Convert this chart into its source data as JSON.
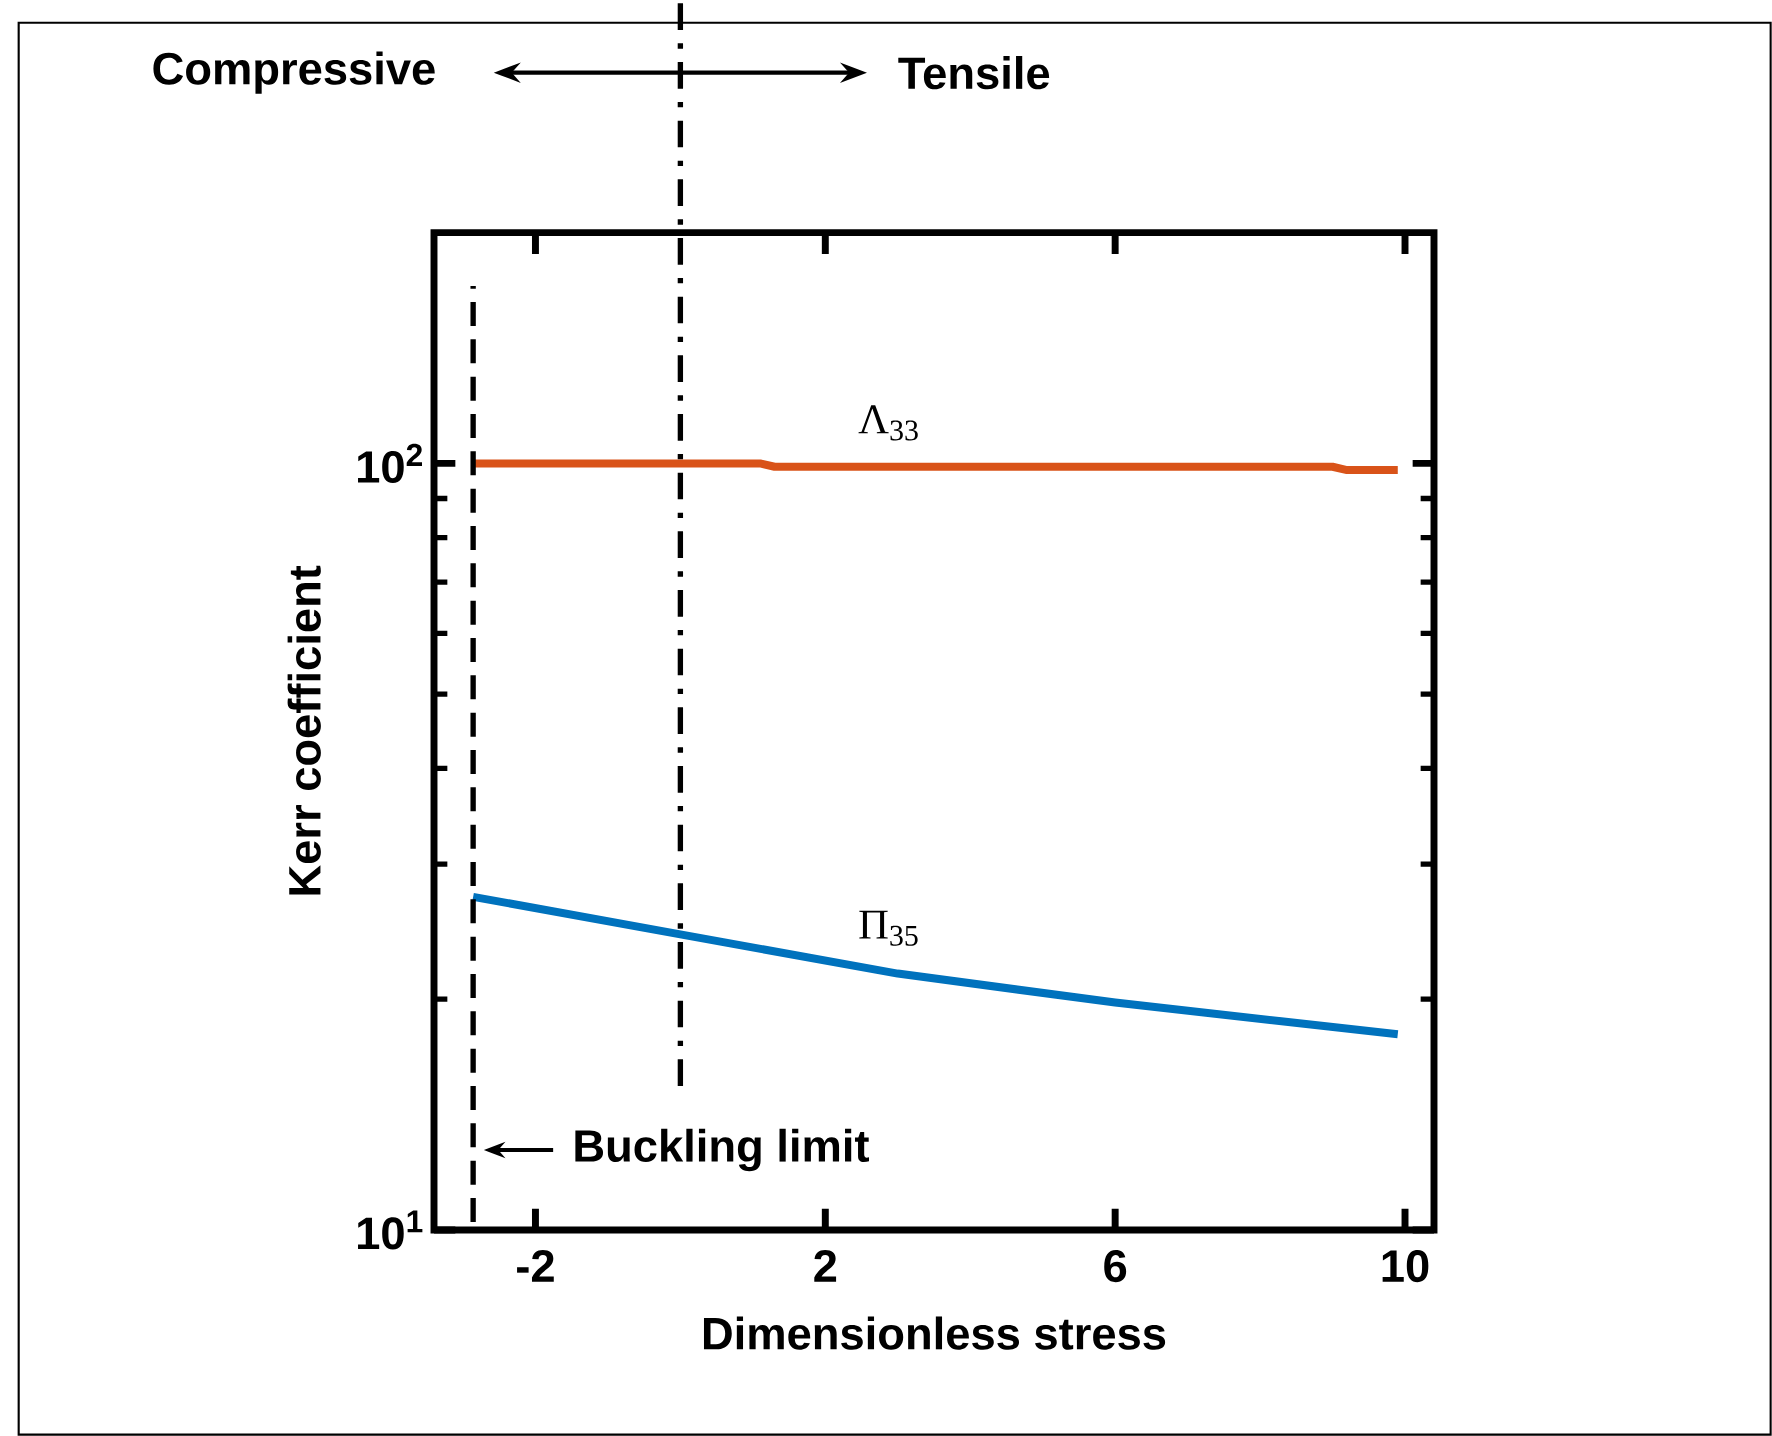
{
  "chart_data": {
    "type": "line",
    "xlabel": "Dimensionless  stress",
    "ylabel": "Kerr coefficient",
    "log": "y",
    "grid": false,
    "marker": "none",
    "xlim": [
      -3.4,
      10.4
    ],
    "ylim": [
      10,
      200
    ],
    "xticks": [
      -2,
      2,
      6,
      10
    ],
    "yticks": [
      {
        "value": 10,
        "label": "10$^{1}$"
      },
      {
        "value": 100,
        "label": "10$^{2}$"
      }
    ],
    "series": [
      {
        "name": "Λ$_{33}$",
        "color": "#d95319",
        "x": [
          -2.86,
          1.1,
          1.3,
          9.0,
          9.2,
          9.9
        ],
        "values": [
          100,
          100,
          99,
          99,
          98,
          98
        ]
      },
      {
        "name": "Π$_{35}$",
        "color": "#0072bd",
        "x": [
          -2.86,
          0,
          3,
          6,
          9.9
        ],
        "values": [
          27.2,
          24.3,
          21.6,
          19.8,
          18.0
        ]
      }
    ],
    "ref_lines": [
      {
        "axis": "x",
        "value": -2.86,
        "label": "Buckling limit",
        "line_style": "dashed"
      },
      {
        "axis": "x",
        "value": 0,
        "line_style": "dashdot"
      }
    ],
    "annotations": [
      "Compressive",
      "Tensile"
    ]
  }
}
